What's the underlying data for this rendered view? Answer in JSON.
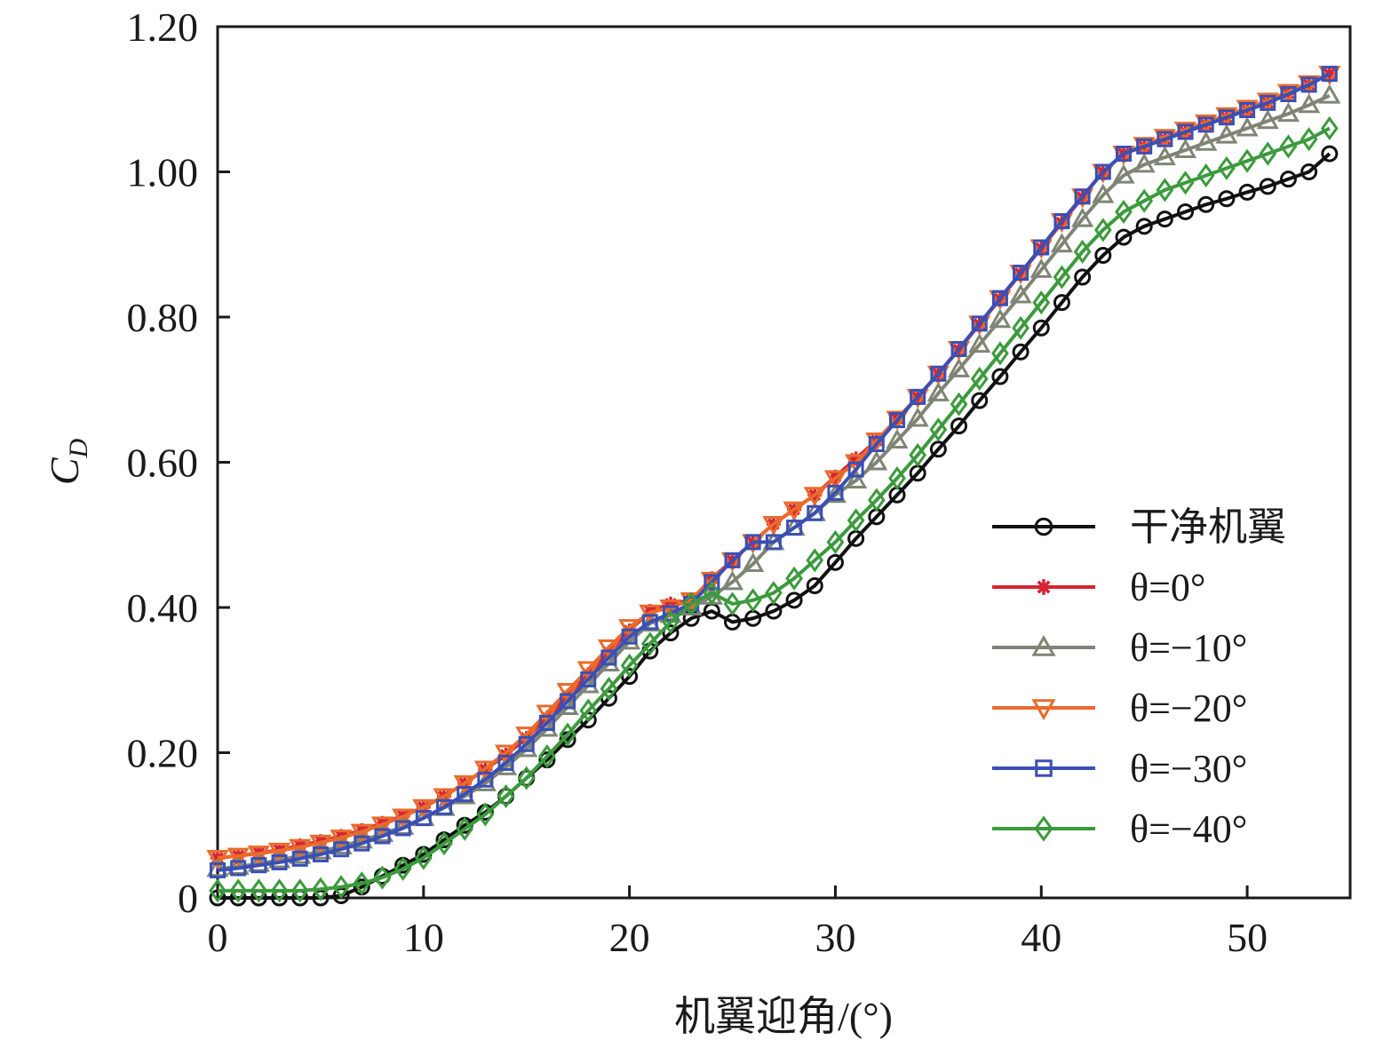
{
  "chart_data": {
    "type": "line",
    "xlabel": "机翼迎角/(°)",
    "ylabel": "C_D",
    "ylabel_main": "C",
    "ylabel_sub": "D",
    "xlim": [
      0,
      55
    ],
    "ylim": [
      0,
      1.2
    ],
    "x_ticks": [
      0,
      10,
      20,
      30,
      40,
      50
    ],
    "x_tick_labels": [
      "0",
      "10",
      "20",
      "30",
      "40",
      "50"
    ],
    "y_ticks": [
      0,
      0.2,
      0.4,
      0.6,
      0.8,
      1.0,
      1.2
    ],
    "y_tick_labels": [
      "0",
      "0.20",
      "0.40",
      "0.60",
      "0.80",
      "1.00",
      "1.20"
    ],
    "grid": false,
    "legend_position": "bottom-right",
    "x": [
      0,
      1,
      2,
      3,
      4,
      5,
      6,
      7,
      8,
      9,
      10,
      11,
      12,
      13,
      14,
      15,
      16,
      17,
      18,
      19,
      20,
      21,
      22,
      23,
      24,
      25,
      26,
      27,
      28,
      29,
      30,
      31,
      32,
      33,
      34,
      35,
      36,
      37,
      38,
      39,
      40,
      41,
      42,
      43,
      44,
      45,
      46,
      47,
      48,
      49,
      50,
      51,
      52,
      53,
      54
    ],
    "series": [
      {
        "name": "干净机翼",
        "color": "#111111",
        "marker": "circle",
        "values": [
          0.0,
          0.0,
          0.0,
          0.0,
          0.0,
          0.0,
          0.003,
          0.015,
          0.03,
          0.045,
          0.06,
          0.08,
          0.1,
          0.118,
          0.14,
          0.165,
          0.19,
          0.218,
          0.245,
          0.275,
          0.305,
          0.34,
          0.365,
          0.385,
          0.395,
          0.38,
          0.385,
          0.395,
          0.41,
          0.43,
          0.462,
          0.495,
          0.525,
          0.555,
          0.585,
          0.618,
          0.65,
          0.685,
          0.718,
          0.752,
          0.785,
          0.82,
          0.855,
          0.885,
          0.91,
          0.925,
          0.935,
          0.945,
          0.955,
          0.963,
          0.972,
          0.98,
          0.99,
          1.0,
          1.025
        ]
      },
      {
        "name": "θ=0°",
        "color": "#d62433",
        "marker": "star",
        "values": [
          0.055,
          0.058,
          0.062,
          0.066,
          0.072,
          0.078,
          0.085,
          0.093,
          0.103,
          0.113,
          0.125,
          0.14,
          0.158,
          0.177,
          0.197,
          0.22,
          0.248,
          0.278,
          0.308,
          0.338,
          0.368,
          0.395,
          0.405,
          0.41,
          0.44,
          0.465,
          0.49,
          0.515,
          0.535,
          0.555,
          0.58,
          0.605,
          0.63,
          0.66,
          0.69,
          0.722,
          0.755,
          0.79,
          0.825,
          0.86,
          0.895,
          0.93,
          0.965,
          1.0,
          1.025,
          1.035,
          1.045,
          1.055,
          1.065,
          1.075,
          1.085,
          1.095,
          1.108,
          1.12,
          1.135
        ]
      },
      {
        "name": "θ=−10°",
        "color": "#7f8575",
        "marker": "triangle-up",
        "values": [
          0.04,
          0.043,
          0.047,
          0.052,
          0.058,
          0.064,
          0.071,
          0.079,
          0.088,
          0.098,
          0.11,
          0.124,
          0.14,
          0.158,
          0.18,
          0.205,
          0.233,
          0.263,
          0.293,
          0.323,
          0.353,
          0.378,
          0.39,
          0.4,
          0.415,
          0.435,
          0.46,
          0.49,
          0.51,
          0.53,
          0.555,
          0.575,
          0.6,
          0.63,
          0.66,
          0.695,
          0.728,
          0.762,
          0.796,
          0.83,
          0.865,
          0.9,
          0.935,
          0.968,
          0.995,
          1.01,
          1.02,
          1.03,
          1.04,
          1.05,
          1.06,
          1.07,
          1.08,
          1.092,
          1.105
        ]
      },
      {
        "name": "θ=−20°",
        "color": "#ea6a2c",
        "marker": "triangle-down",
        "values": [
          0.055,
          0.058,
          0.061,
          0.065,
          0.07,
          0.076,
          0.083,
          0.091,
          0.101,
          0.112,
          0.125,
          0.14,
          0.158,
          0.178,
          0.2,
          0.225,
          0.255,
          0.285,
          0.315,
          0.345,
          0.373,
          0.393,
          0.4,
          0.41,
          0.438,
          0.465,
          0.49,
          0.515,
          0.535,
          0.555,
          0.578,
          0.6,
          0.63,
          0.66,
          0.69,
          0.722,
          0.756,
          0.791,
          0.826,
          0.861,
          0.896,
          0.932,
          0.966,
          1.0,
          1.025,
          1.037,
          1.048,
          1.058,
          1.068,
          1.078,
          1.088,
          1.098,
          1.11,
          1.122,
          1.135
        ]
      },
      {
        "name": "θ=−30°",
        "color": "#3a4fb5",
        "marker": "square",
        "values": [
          0.038,
          0.041,
          0.045,
          0.049,
          0.054,
          0.06,
          0.067,
          0.075,
          0.085,
          0.096,
          0.11,
          0.125,
          0.143,
          0.163,
          0.186,
          0.212,
          0.241,
          0.271,
          0.301,
          0.331,
          0.36,
          0.38,
          0.392,
          0.405,
          0.435,
          0.465,
          0.49,
          0.49,
          0.51,
          0.53,
          0.558,
          0.59,
          0.625,
          0.658,
          0.69,
          0.722,
          0.756,
          0.791,
          0.826,
          0.861,
          0.896,
          0.932,
          0.966,
          1.0,
          1.025,
          1.035,
          1.045,
          1.055,
          1.065,
          1.075,
          1.085,
          1.095,
          1.107,
          1.12,
          1.135
        ]
      },
      {
        "name": "θ=−40°",
        "color": "#3c9a3c",
        "marker": "diamond",
        "values": [
          0.01,
          0.01,
          0.01,
          0.01,
          0.01,
          0.012,
          0.015,
          0.02,
          0.028,
          0.04,
          0.055,
          0.075,
          0.095,
          0.115,
          0.14,
          0.165,
          0.195,
          0.225,
          0.258,
          0.288,
          0.32,
          0.35,
          0.38,
          0.405,
          0.42,
          0.405,
          0.41,
          0.42,
          0.44,
          0.465,
          0.49,
          0.52,
          0.548,
          0.578,
          0.61,
          0.645,
          0.68,
          0.715,
          0.75,
          0.785,
          0.82,
          0.855,
          0.89,
          0.92,
          0.945,
          0.96,
          0.975,
          0.985,
          0.995,
          1.005,
          1.015,
          1.025,
          1.035,
          1.045,
          1.06
        ]
      }
    ]
  }
}
